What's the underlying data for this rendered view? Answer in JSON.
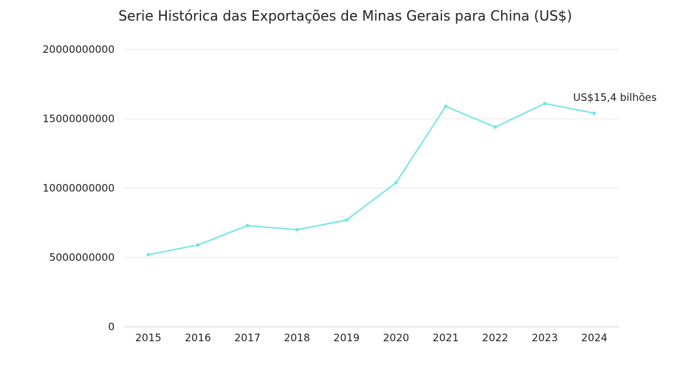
{
  "chart_data": {
    "type": "line",
    "title": "Serie Histórica das Exportações de Minas Gerais para China (US$)",
    "xlabel": "",
    "ylabel": "",
    "categories": [
      "2015",
      "2016",
      "2017",
      "2018",
      "2019",
      "2020",
      "2021",
      "2022",
      "2023",
      "2024"
    ],
    "series": [
      {
        "values": [
          5200000000,
          5900000000,
          7300000000,
          7000000000,
          7700000000,
          10400000000,
          15900000000,
          14400000000,
          16100000000,
          15400000000
        ],
        "color": "#6ee6e6"
      }
    ],
    "ylim": [
      0,
      20000000000
    ],
    "yticks": [
      "0",
      "5000000000",
      "10000000000",
      "15000000000",
      "20000000000"
    ],
    "grid": true,
    "annotations": [
      {
        "text": "US$15,4 bilhões",
        "category": "2024"
      }
    ]
  }
}
